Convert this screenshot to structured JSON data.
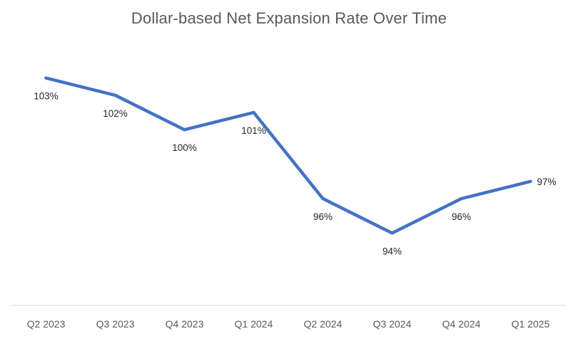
{
  "chart_data": {
    "type": "line",
    "title": "Dollar-based Net Expansion Rate Over Time",
    "categories": [
      "Q2 2023",
      "Q3 2023",
      "Q4 2023",
      "Q1 2024",
      "Q2 2024",
      "Q3 2024",
      "Q4 2024",
      "Q1 2025"
    ],
    "values": [
      103,
      102,
      100,
      101,
      96,
      94,
      96,
      97
    ],
    "data_labels": [
      "103%",
      "102%",
      "100%",
      "101%",
      "96%",
      "94%",
      "96%",
      "97%"
    ],
    "data_label_positions": [
      "below",
      "below",
      "below",
      "below",
      "below",
      "below",
      "below",
      "right"
    ],
    "xlabel": "",
    "ylabel": "",
    "ylim": [
      89.8,
      104.8
    ],
    "grid": false,
    "legend": "none",
    "colors": {
      "line": "#4472C4",
      "title": "#595959",
      "axis_labels": "#595959",
      "data_labels": "#262626",
      "axis_line": "#D9D9D9",
      "background": "#FFFFFF"
    }
  }
}
